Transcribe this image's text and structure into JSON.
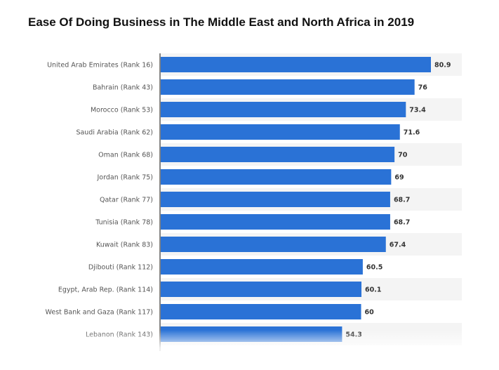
{
  "chart_data": {
    "type": "bar",
    "orientation": "horizontal",
    "title": "Ease Of Doing Business in The Middle East and North Africa in 2019",
    "categories": [
      "United Arab Emirates (Rank 16)",
      "Bahrain (Rank 43)",
      "Morocco (Rank 53)",
      "Saudi Arabia (Rank 62)",
      "Oman (Rank 68)",
      "Jordan (Rank 75)",
      "Qatar (Rank 77)",
      "Tunisia (Rank 78)",
      "Kuwait (Rank 83)",
      "Djibouti (Rank 112)",
      "Egypt, Arab Rep. (Rank 114)",
      "West Bank and Gaza (Rank 117)",
      "Lebanon (Rank 143)"
    ],
    "values": [
      80.9,
      76,
      73.4,
      71.6,
      70,
      69,
      68.7,
      68.7,
      67.4,
      60.5,
      60.1,
      60,
      54.3
    ],
    "value_labels": [
      "80.9",
      "76",
      "73.4",
      "71.6",
      "70",
      "69",
      "68.7",
      "68.7",
      "67.4",
      "60.5",
      "60.1",
      "60",
      "54.3"
    ],
    "xlim": [
      0,
      85
    ],
    "bar_color": "#2a72d6",
    "grid": false,
    "alternating_row_bands": true
  }
}
